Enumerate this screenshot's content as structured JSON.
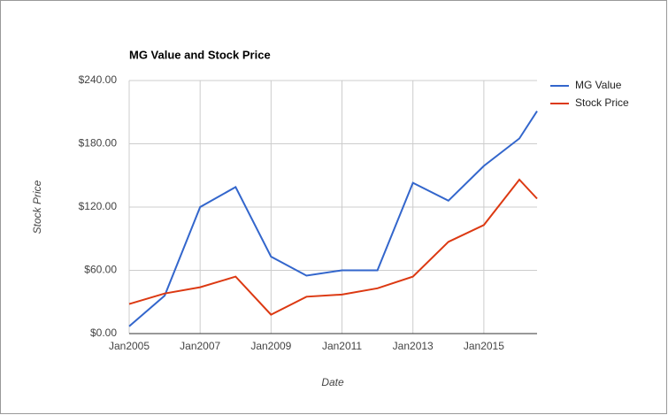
{
  "chart_data": {
    "type": "line",
    "title": "MG Value and Stock Price",
    "x_label": "Date",
    "y_label": "Stock Price",
    "x": [
      2005,
      2006,
      2007,
      2008,
      2009,
      2010,
      2011,
      2012,
      2013,
      2014,
      2015,
      2016,
      2016.5
    ],
    "series": [
      {
        "name": "MG Value",
        "color": "#3366cc",
        "values": [
          7,
          36,
          120,
          139,
          73,
          55,
          60,
          60,
          143,
          126,
          159,
          185,
          211
        ]
      },
      {
        "name": "Stock Price",
        "color": "#dc3912",
        "values": [
          28,
          38,
          44,
          54,
          18,
          35,
          37,
          43,
          54,
          87,
          103,
          146,
          128
        ]
      }
    ],
    "xlim": [
      2005,
      2016.5
    ],
    "xticks": [
      {
        "value": 2005,
        "label": "Jan2005"
      },
      {
        "value": 2007,
        "label": "Jan2007"
      },
      {
        "value": 2009,
        "label": "Jan2009"
      },
      {
        "value": 2011,
        "label": "Jan2011"
      },
      {
        "value": 2013,
        "label": "Jan2013"
      },
      {
        "value": 2015,
        "label": "Jan2015"
      }
    ],
    "ylim": [
      0,
      240
    ],
    "yticks": [
      {
        "value": 0,
        "label": "$0.00"
      },
      {
        "value": 60,
        "label": "$60.00"
      },
      {
        "value": 120,
        "label": "$120.00"
      },
      {
        "value": 180,
        "label": "$180.00"
      },
      {
        "value": 240,
        "label": "$240.00"
      }
    ],
    "grid": true,
    "legend": "right"
  }
}
